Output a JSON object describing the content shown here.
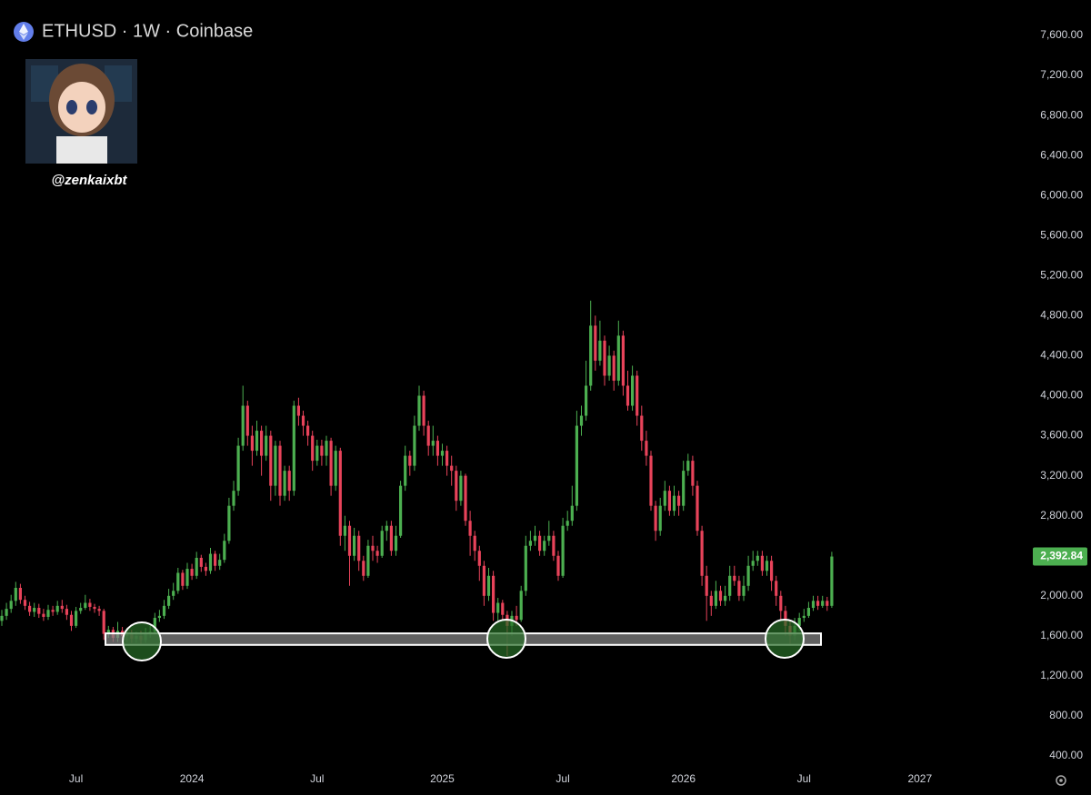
{
  "chart_data": {
    "type": "candlestick",
    "title": "ETHUSD · 1W · Coinbase",
    "handle": "@zenkaixbt",
    "up_color": "#4caf50",
    "down_color": "#e8435a",
    "ylim": [
      237,
      7954
    ],
    "yticks": [
      {
        "value": 400,
        "label": "400.00"
      },
      {
        "value": 800,
        "label": "800.00"
      },
      {
        "value": 1200,
        "label": "1,200.00"
      },
      {
        "value": 1600,
        "label": "1,600.00"
      },
      {
        "value": 2000,
        "label": "2,000.00"
      },
      {
        "value": 2400,
        "label": "2,400.00"
      },
      {
        "value": 2800,
        "label": "2,800.00"
      },
      {
        "value": 3200,
        "label": "3,200.00"
      },
      {
        "value": 3600,
        "label": "3,600.00"
      },
      {
        "value": 4000,
        "label": "4,000.00"
      },
      {
        "value": 4400,
        "label": "4,400.00"
      },
      {
        "value": 4800,
        "label": "4,800.00"
      },
      {
        "value": 5200,
        "label": "5,200.00"
      },
      {
        "value": 5600,
        "label": "5,600.00"
      },
      {
        "value": 6000,
        "label": "6,000.00"
      },
      {
        "value": 6400,
        "label": "6,400.00"
      },
      {
        "value": 6800,
        "label": "6,800.00"
      },
      {
        "value": 7200,
        "label": "7,200.00"
      },
      {
        "value": 7600,
        "label": "7,600.00"
      }
    ],
    "last_price": {
      "value": 2392.84,
      "label": "2,392.84"
    },
    "support_zone": [
      1510,
      1625
    ],
    "categories": [
      null,
      null,
      null,
      null,
      null,
      null,
      null,
      null,
      null,
      null,
      null,
      null,
      null,
      null,
      null,
      null,
      "Jul",
      null,
      null,
      null,
      null,
      null,
      null,
      null,
      null,
      null,
      null,
      null,
      null,
      null,
      null,
      null,
      null,
      null,
      null,
      null,
      null,
      null,
      null,
      null,
      null,
      "2024",
      null,
      null,
      null,
      null,
      null,
      null,
      null,
      null,
      null,
      null,
      null,
      null,
      null,
      null,
      null,
      null,
      null,
      null,
      null,
      null,
      null,
      null,
      null,
      null,
      null,
      null,
      "Jul",
      null,
      null,
      null,
      null,
      null,
      null,
      null,
      null,
      null,
      null,
      null,
      null,
      null,
      null,
      null,
      null,
      null,
      null,
      null,
      null,
      null,
      null,
      null,
      null,
      null,
      null,
      "2025",
      null,
      null,
      null,
      null,
      null,
      null,
      null,
      null,
      null,
      null,
      null,
      null,
      null,
      null,
      null,
      null,
      null,
      null,
      null,
      null,
      null,
      null,
      null,
      null,
      null,
      "Jul",
      null,
      null,
      null,
      null,
      null,
      null,
      null,
      null,
      null,
      null,
      null,
      null,
      null,
      null,
      null,
      null,
      null,
      null,
      null,
      null,
      null,
      null,
      null,
      null,
      null,
      "2026",
      null,
      null,
      null,
      null,
      null,
      null,
      null,
      null,
      null,
      null,
      null,
      null,
      null,
      null,
      null,
      null,
      null,
      null,
      null,
      null,
      null,
      null,
      null,
      null,
      null,
      "Jul",
      null,
      null,
      null,
      null,
      null,
      null,
      null,
      null,
      null,
      null,
      null,
      null,
      null,
      null,
      null,
      null,
      null,
      null,
      null,
      null,
      null,
      null,
      null,
      null,
      "2027"
    ],
    "open": [
      1750,
      1800,
      1870,
      1950,
      2080,
      1960,
      1900,
      1840,
      1880,
      1820,
      1790,
      1860,
      1840,
      1900,
      1870,
      1810,
      1700,
      1850,
      1880,
      1930,
      1890,
      1870,
      1850,
      1620,
      1660,
      1580,
      1650,
      1600,
      1630,
      1570,
      1600,
      1560,
      1620,
      1640,
      1780,
      1800,
      1900,
      2000,
      2050,
      2230,
      2100,
      2270,
      2200,
      2380,
      2290,
      2250,
      2420,
      2300,
      2360,
      2550,
      2900,
      3050,
      3500,
      3900,
      3600,
      3450,
      3650,
      3400,
      3600,
      3100,
      3500,
      3000,
      3250,
      3050,
      3900,
      3800,
      3700,
      3600,
      3350,
      3500,
      3400,
      3550,
      3100,
      3450,
      2600,
      2700,
      2400,
      2600,
      2350,
      2200,
      2500,
      2450,
      2400,
      2650,
      2700,
      2450,
      2600,
      3100,
      3400,
      3300,
      3700,
      4000,
      3700,
      3500,
      3550,
      3400,
      3450,
      3300,
      3250,
      2950,
      3200,
      2750,
      2600,
      2450,
      2300,
      2000,
      2200,
      1830,
      1930,
      1810,
      1700,
      1800,
      1760,
      2050,
      2500,
      2550,
      2600,
      2450,
      2550,
      2600,
      2400,
      2200,
      2700,
      2750,
      2900,
      3700,
      3800,
      4100,
      4700,
      4350,
      4550,
      4200,
      4400,
      4150,
      4600,
      4100,
      3900,
      4200,
      3800,
      3550,
      3400,
      2900,
      2650,
      2900,
      3050,
      2850,
      3000,
      2900,
      3250,
      3350,
      3100,
      2650,
      2200,
      2000,
      1900,
      2050,
      1950,
      2000,
      2200,
      2150,
      2000,
      2100,
      2300,
      2350,
      2400,
      2250,
      2350,
      2150,
      2000,
      1850,
      1700,
      1600,
      1700,
      1780,
      1800,
      1880,
      1950,
      1900,
      1950,
      1900,
      null,
      null,
      null,
      null,
      null,
      null,
      null,
      null,
      null,
      null,
      null,
      null,
      null,
      null,
      null,
      null,
      null,
      null,
      null
    ],
    "high": [
      1860,
      1930,
      2010,
      2140,
      2120,
      2000,
      1940,
      1930,
      1920,
      1870,
      1910,
      1900,
      1950,
      1960,
      1910,
      1850,
      1890,
      1930,
      2010,
      1970,
      1920,
      1900,
      1870,
      1700,
      1690,
      1740,
      1690,
      1680,
      1660,
      1640,
      1650,
      1680,
      1700,
      1830,
      1860,
      1960,
      2070,
      2130,
      2280,
      2260,
      2330,
      2320,
      2440,
      2410,
      2330,
      2480,
      2450,
      2420,
      2620,
      2980,
      3150,
      3580,
      4100,
      3950,
      3700,
      3750,
      3700,
      3700,
      3650,
      3550,
      3550,
      3300,
      3300,
      3950,
      3980,
      3850,
      3750,
      3650,
      3560,
      3560,
      3600,
      3580,
      3500,
      3480,
      2800,
      2750,
      2680,
      2650,
      2400,
      2560,
      2600,
      2500,
      2700,
      2750,
      2750,
      2700,
      3150,
      3500,
      3450,
      3800,
      4100,
      4050,
      3750,
      3700,
      3600,
      3520,
      3500,
      3400,
      3300,
      3250,
      3220,
      2850,
      2650,
      2500,
      2350,
      2280,
      2250,
      1980,
      1960,
      1850,
      1850,
      1900,
      2100,
      2600,
      2650,
      2700,
      2650,
      2600,
      2750,
      2650,
      2450,
      2780,
      2850,
      3100,
      3850,
      3900,
      4350,
      4950,
      4800,
      4750,
      4600,
      4500,
      4450,
      4750,
      4650,
      4250,
      4300,
      4250,
      3900,
      3650,
      3450,
      2950,
      2980,
      3150,
      3100,
      3100,
      3050,
      3350,
      3420,
      3400,
      3150,
      2700,
      2300,
      2050,
      2150,
      2100,
      2100,
      2300,
      2300,
      2200,
      2200,
      2400,
      2450,
      2450,
      2450,
      2400,
      2400,
      2200,
      2050,
      1900,
      1750,
      1780,
      1830,
      1870,
      1940,
      2000,
      2000,
      2000,
      1990,
      2440,
      null,
      null,
      null,
      null,
      null,
      null,
      null,
      null,
      null,
      null,
      null,
      null,
      null,
      null,
      null,
      null,
      null,
      null,
      null
    ],
    "low": [
      1700,
      1760,
      1830,
      1900,
      1920,
      1860,
      1800,
      1790,
      1780,
      1750,
      1760,
      1800,
      1810,
      1830,
      1760,
      1650,
      1680,
      1820,
      1860,
      1850,
      1830,
      1800,
      1560,
      1580,
      1540,
      1540,
      1560,
      1540,
      1530,
      1530,
      1520,
      1530,
      1580,
      1620,
      1740,
      1770,
      1870,
      1960,
      2020,
      2060,
      2070,
      2160,
      2170,
      2240,
      2200,
      2220,
      2250,
      2260,
      2330,
      2520,
      2850,
      3000,
      3450,
      3500,
      3300,
      3400,
      3200,
      3350,
      2950,
      3000,
      2900,
      2950,
      2950,
      3000,
      3700,
      3600,
      3500,
      3250,
      3300,
      3300,
      3300,
      3000,
      3050,
      2500,
      2450,
      2100,
      2350,
      2250,
      2150,
      2180,
      2350,
      2330,
      2380,
      2550,
      2400,
      2400,
      2580,
      3050,
      3200,
      3250,
      3650,
      3600,
      3400,
      3400,
      3300,
      3300,
      3200,
      3100,
      2850,
      2900,
      2700,
      2400,
      2350,
      2150,
      1900,
      1950,
      1750,
      1750,
      1750,
      1400,
      1600,
      1700,
      1740,
      2000,
      2450,
      2500,
      2400,
      2400,
      2500,
      2350,
      2150,
      2180,
      2650,
      2700,
      2850,
      3600,
      3750,
      4050,
      4250,
      4300,
      4100,
      4150,
      4050,
      4100,
      4000,
      3850,
      3850,
      3700,
      3450,
      3300,
      2850,
      2550,
      2600,
      2850,
      2800,
      2800,
      2800,
      2850,
      3200,
      3000,
      2600,
      2100,
      1750,
      1800,
      1870,
      1900,
      1900,
      1950,
      2100,
      1950,
      1950,
      2050,
      2250,
      2300,
      2200,
      2200,
      2050,
      1900,
      1750,
      1600,
      1520,
      1560,
      1650,
      1740,
      1780,
      1850,
      1860,
      1880,
      1850,
      1880,
      null,
      null,
      null,
      null,
      null,
      null,
      null,
      null,
      null,
      null,
      null,
      null,
      null,
      null,
      null,
      null,
      null,
      null,
      null
    ],
    "close": [
      1800,
      1870,
      1950,
      2080,
      1960,
      1900,
      1840,
      1880,
      1820,
      1790,
      1860,
      1840,
      1900,
      1870,
      1810,
      1700,
      1850,
      1880,
      1930,
      1890,
      1870,
      1850,
      1620,
      1660,
      1580,
      1650,
      1600,
      1630,
      1570,
      1600,
      1560,
      1620,
      1640,
      1780,
      1800,
      1900,
      2000,
      2050,
      2230,
      2100,
      2270,
      2200,
      2380,
      2290,
      2250,
      2420,
      2300,
      2360,
      2550,
      2900,
      3050,
      3500,
      3900,
      3600,
      3450,
      3650,
      3400,
      3600,
      3100,
      3500,
      3000,
      3250,
      3050,
      3900,
      3800,
      3700,
      3600,
      3350,
      3500,
      3400,
      3550,
      3100,
      3450,
      2600,
      2700,
      2400,
      2600,
      2350,
      2200,
      2500,
      2450,
      2400,
      2650,
      2700,
      2450,
      2600,
      3100,
      3400,
      3300,
      3700,
      4000,
      3700,
      3500,
      3550,
      3400,
      3450,
      3300,
      3250,
      2950,
      3200,
      2750,
      2600,
      2450,
      2300,
      2000,
      2200,
      1830,
      1930,
      1810,
      1700,
      1800,
      1760,
      2050,
      2500,
      2550,
      2600,
      2450,
      2550,
      2600,
      2400,
      2200,
      2700,
      2750,
      2900,
      3700,
      3800,
      4100,
      4700,
      4350,
      4550,
      4200,
      4400,
      4150,
      4600,
      4100,
      3900,
      4200,
      3800,
      3550,
      3400,
      2900,
      2650,
      2900,
      3050,
      2850,
      3000,
      2900,
      3250,
      3350,
      3100,
      2650,
      2200,
      2000,
      1900,
      2050,
      1950,
      2000,
      2200,
      2150,
      2000,
      2100,
      2300,
      2350,
      2400,
      2250,
      2350,
      2150,
      2000,
      1850,
      1700,
      1600,
      1700,
      1780,
      1800,
      1880,
      1950,
      1900,
      1950,
      1900,
      2392.84,
      null,
      null,
      null,
      null,
      null,
      null,
      null,
      null,
      null,
      null,
      null,
      null,
      null,
      null,
      null,
      null,
      null,
      null,
      null
    ]
  }
}
